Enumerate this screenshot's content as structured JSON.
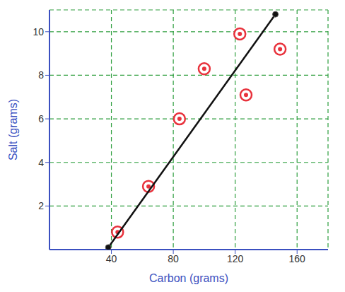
{
  "chart_data": {
    "type": "scatter",
    "x_label": "Carbon (grams)",
    "y_label": "Salt (grams)",
    "xlim": [
      0,
      180
    ],
    "ylim": [
      0,
      11
    ],
    "xticks": [
      40,
      80,
      120,
      160
    ],
    "yticks": [
      2,
      4,
      6,
      8,
      10
    ],
    "grid": true,
    "series": [
      {
        "type": "scatter",
        "color": "#e8323c",
        "marker": "circle",
        "x": [
          44,
          64,
          84,
          100,
          123,
          127,
          149
        ],
        "values": [
          0.8,
          2.9,
          6.0,
          8.3,
          9.9,
          7.1,
          9.2
        ]
      },
      {
        "type": "line",
        "color": "#111111",
        "marker": "circle",
        "x": [
          38,
          146
        ],
        "values": [
          0.1,
          10.8
        ]
      }
    ]
  }
}
